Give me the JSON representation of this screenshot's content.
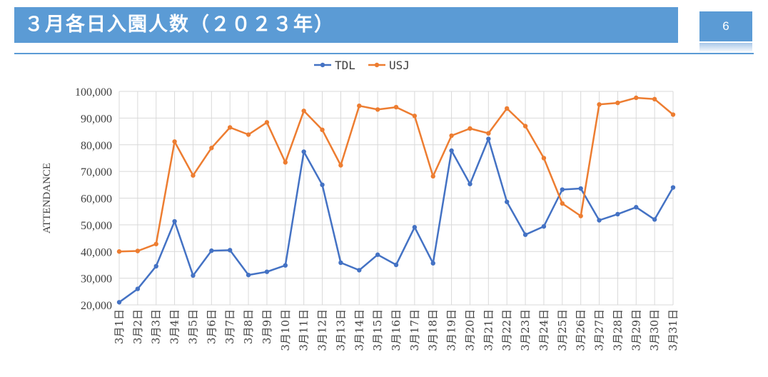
{
  "header": {
    "title": "３月各日入園人数（２０２３年）",
    "page_number": "6"
  },
  "colors": {
    "header_bg": "#5b9bd5",
    "tdl": "#4472c4",
    "usj": "#ed7d31"
  },
  "chart_data": {
    "type": "line",
    "title": "",
    "xlabel": "",
    "ylabel": "ATTENDANCE",
    "ylim": [
      20000,
      100000
    ],
    "yticks": [
      20000,
      30000,
      40000,
      50000,
      60000,
      70000,
      80000,
      90000,
      100000
    ],
    "ytick_labels": [
      "20,000",
      "30,000",
      "40,000",
      "50,000",
      "60,000",
      "70,000",
      "80,000",
      "90,000",
      "100,000"
    ],
    "grid": true,
    "legend_position": "top",
    "categories": [
      "3月1日",
      "3月2日",
      "3月3日",
      "3月4日",
      "3月5日",
      "3月6日",
      "3月7日",
      "3月8日",
      "3月9日",
      "3月10日",
      "3月11日",
      "3月12日",
      "3月13日",
      "3月14日",
      "3月15日",
      "3月16日",
      "3月17日",
      "3月18日",
      "3月19日",
      "3月20日",
      "3月21日",
      "3月22日",
      "3月23日",
      "3月24日",
      "3月25日",
      "3月26日",
      "3月27日",
      "3月28日",
      "3月29日",
      "3月30日",
      "3月31日"
    ],
    "series": [
      {
        "name": "TDL",
        "color": "#4472c4",
        "values": [
          21000,
          26000,
          34500,
          51300,
          31000,
          40300,
          40500,
          31200,
          32400,
          34800,
          77400,
          65000,
          35800,
          33000,
          38800,
          35000,
          49100,
          35600,
          77800,
          65300,
          82200,
          58600,
          46300,
          49400,
          63200,
          63600,
          51700,
          54000,
          56600,
          52000,
          64000
        ]
      },
      {
        "name": "USJ",
        "color": "#ed7d31",
        "values": [
          40000,
          40200,
          42800,
          81200,
          68500,
          78800,
          86500,
          83800,
          88400,
          73400,
          92700,
          85600,
          72300,
          94600,
          93200,
          94100,
          90800,
          68200,
          83400,
          86100,
          84300,
          93600,
          87000,
          75000,
          58000,
          53300,
          95100,
          95700,
          97600,
          97100,
          91300
        ]
      }
    ]
  }
}
